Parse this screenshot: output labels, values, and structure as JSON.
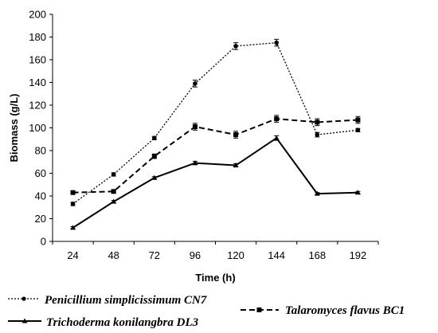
{
  "chart_data": {
    "type": "line",
    "title": "",
    "xlabel": "Time (h)",
    "ylabel": "Biomass (g/L)",
    "categories": [
      "24",
      "48",
      "72",
      "96",
      "120",
      "144",
      "168",
      "192"
    ],
    "ylim": [
      0,
      200
    ],
    "yticks": [
      "0",
      "20",
      "40",
      "60",
      "80",
      "100",
      "120",
      "140",
      "160",
      "180",
      "200"
    ],
    "grid": false,
    "legend_position": "bottom",
    "series": [
      {
        "name": "Penicillium simplicissimum CN7",
        "values": [
          33,
          59,
          91,
          139,
          172,
          175,
          94,
          98
        ],
        "errors": [
          1.5,
          1.5,
          1.5,
          3,
          3,
          3,
          2,
          1.5
        ],
        "color": "#000000",
        "style": "dotted"
      },
      {
        "name": "Talaromyces flavus BC1",
        "values": [
          43,
          44,
          75,
          101,
          94,
          108,
          105,
          107
        ],
        "errors": [
          1.5,
          1.5,
          2,
          3,
          3,
          3,
          3,
          3
        ],
        "color": "#000000",
        "style": "dashed"
      },
      {
        "name": "Trichoderma konilangbra DL3",
        "values": [
          12,
          35,
          56,
          69,
          67,
          91,
          42,
          43
        ],
        "errors": [
          1,
          1,
          1,
          1.5,
          1.5,
          2,
          1,
          1
        ],
        "color": "#000000",
        "style": "solid"
      }
    ]
  }
}
